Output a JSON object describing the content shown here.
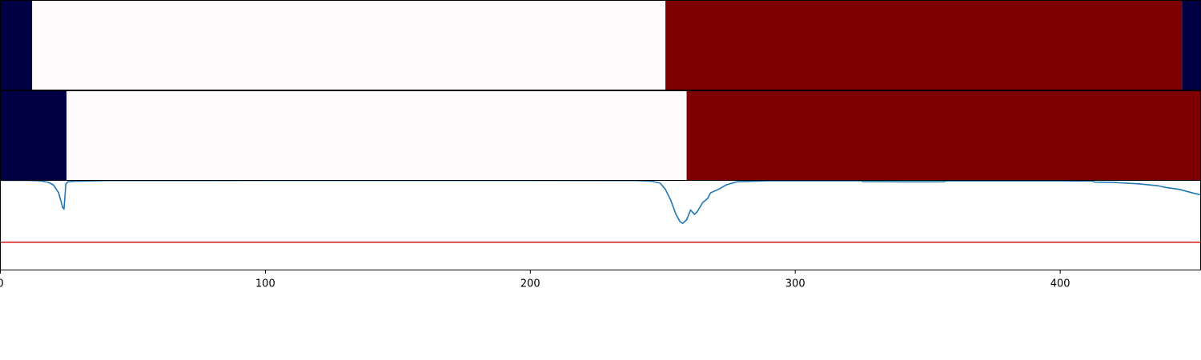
{
  "chart_data": [
    {
      "type": "heatmap",
      "segments": [
        {
          "start": 0,
          "end": 12,
          "color": "#000044"
        },
        {
          "start": 12,
          "end": 251,
          "color": "#fffafc"
        },
        {
          "start": 251,
          "end": 446,
          "color": "#7f0000"
        },
        {
          "start": 446,
          "end": 453,
          "color": "#000044"
        }
      ]
    },
    {
      "type": "heatmap",
      "segments": [
        {
          "start": 0,
          "end": 25,
          "color": "#000044"
        },
        {
          "start": 25,
          "end": 259,
          "color": "#fffafc"
        },
        {
          "start": 259,
          "end": 453,
          "color": "#7f0000"
        }
      ]
    },
    {
      "type": "line",
      "xlim": [
        0,
        453
      ],
      "ylim": [
        0,
        1
      ],
      "x_ticks": [
        0,
        100,
        200,
        300,
        400
      ],
      "x_tick_labels": [
        "0",
        "100",
        "200",
        "300",
        "400"
      ],
      "grid": false,
      "series": [
        {
          "color": "#1f77b4",
          "points": [
            [
              0,
              1.0
            ],
            [
              10,
              1.0
            ],
            [
              15,
              0.995
            ],
            [
              18,
              0.98
            ],
            [
              20,
              0.95
            ],
            [
              22,
              0.86
            ],
            [
              23.5,
              0.7
            ],
            [
              24,
              0.68
            ],
            [
              24.7,
              0.96
            ],
            [
              25.5,
              0.985
            ],
            [
              28,
              0.99
            ],
            [
              40,
              0.998
            ],
            [
              100,
              0.999
            ],
            [
              200,
              0.999
            ],
            [
              240,
              0.998
            ],
            [
              246,
              0.99
            ],
            [
              249,
              0.97
            ],
            [
              251,
              0.9
            ],
            [
              253,
              0.78
            ],
            [
              255,
              0.62
            ],
            [
              256.5,
              0.54
            ],
            [
              257.5,
              0.52
            ],
            [
              259,
              0.56
            ],
            [
              260.5,
              0.67
            ],
            [
              262,
              0.62
            ],
            [
              263,
              0.65
            ],
            [
              265,
              0.75
            ],
            [
              267,
              0.8
            ],
            [
              268,
              0.86
            ],
            [
              271,
              0.9
            ],
            [
              274,
              0.95
            ],
            [
              278,
              0.985
            ],
            [
              290,
              0.996
            ],
            [
              325,
              0.997
            ],
            [
              325.5,
              0.987
            ],
            [
              340,
              0.985
            ],
            [
              356,
              0.985
            ],
            [
              357,
              0.995
            ],
            [
              400,
              0.995
            ],
            [
              412,
              0.993
            ],
            [
              413,
              0.982
            ],
            [
              420,
              0.978
            ],
            [
              430,
              0.96
            ],
            [
              437,
              0.94
            ],
            [
              440,
              0.92
            ],
            [
              445,
              0.9
            ],
            [
              450,
              0.86
            ],
            [
              453,
              0.84
            ]
          ]
        },
        {
          "color": "#d62728",
          "points": [
            [
              0,
              0.31
            ],
            [
              453,
              0.31
            ]
          ]
        }
      ]
    }
  ]
}
